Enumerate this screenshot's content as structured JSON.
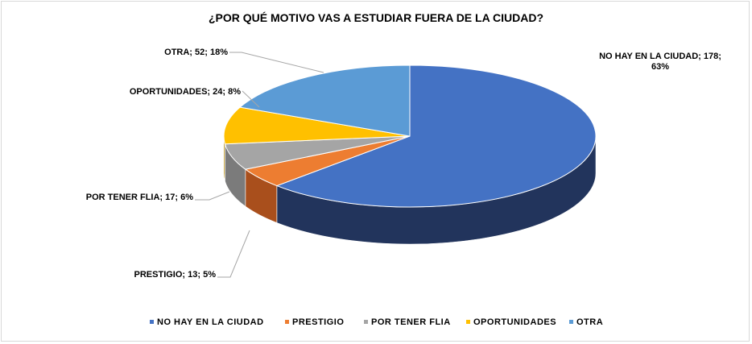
{
  "chart_data": {
    "type": "pie",
    "title": "¿POR QUÉ MOTIVO VAS A ESTUDIAR FUERA DE LA CIUDAD?",
    "categories": [
      "NO HAY EN LA CIUDAD",
      "PRESTIGIO",
      "POR TENER FLIA",
      "OPORTUNIDADES",
      "OTRA"
    ],
    "values": [
      178,
      13,
      17,
      24,
      52
    ],
    "percents": [
      63,
      5,
      6,
      8,
      18
    ],
    "data_labels": [
      [
        "NO HAY  EN  LA CIUDAD;  178;",
        "63%"
      ],
      [
        "PRESTIGIO;  13; 5%"
      ],
      [
        "POR TENER  FLIA;  17; 6%"
      ],
      [
        "OPORTUNIDADES;  24; 8%"
      ],
      [
        "OTRA;  52; 18%"
      ]
    ],
    "colors": [
      "#4472C4",
      "#ED7D31",
      "#A5A5A5",
      "#FFC000",
      "#5B9BD5"
    ],
    "dark_colors": [
      "#22345C",
      "#A94F1C",
      "#7B7B7B",
      "#B38600",
      "#3D6C99"
    ],
    "legend_position": "bottom",
    "legend_labels": [
      "NO HAY EN LA CIUDAD",
      "PRESTIGIO",
      "POR TENER FLIA",
      "OPORTUNIDADES",
      "OTRA"
    ],
    "style": "3d-pie"
  }
}
